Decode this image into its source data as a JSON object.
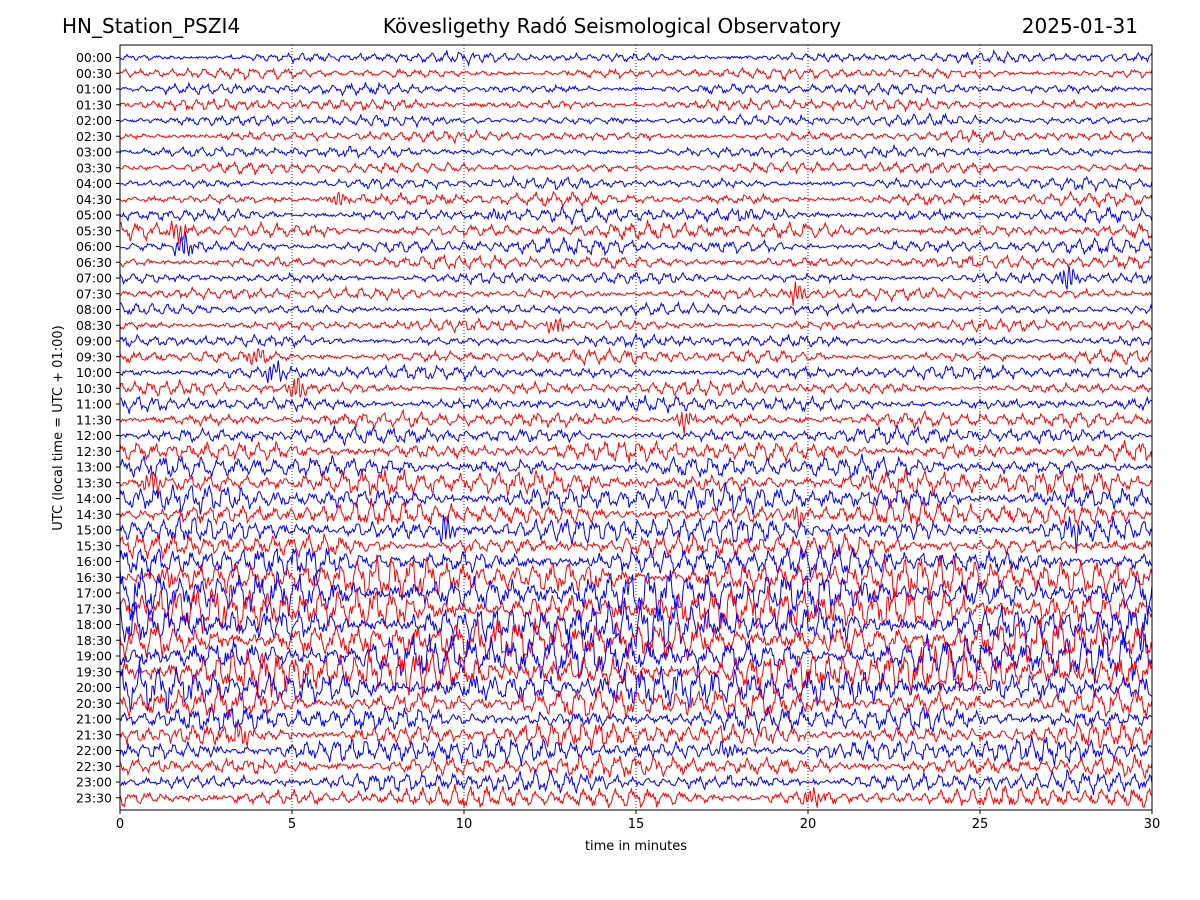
{
  "header": {
    "station": "HN_Station_PSZI4",
    "observatory": "Kövesligethy Radó Seismological Observatory",
    "date": "2025-01-31"
  },
  "chart_data": {
    "type": "line",
    "title": "Kövesligethy Radó Seismological Observatory",
    "xlabel": "time in minutes",
    "ylabel": "UTC (local time = UTC + 01:00)",
    "xlim": [
      0,
      30
    ],
    "x_ticks": [
      "0",
      "5",
      "10",
      "15",
      "20",
      "25",
      "30"
    ],
    "grid": "vertical dotted",
    "row_labels": [
      "00:00",
      "00:30",
      "01:00",
      "01:30",
      "02:00",
      "02:30",
      "03:00",
      "03:30",
      "04:00",
      "04:30",
      "05:00",
      "05:30",
      "06:00",
      "06:30",
      "07:00",
      "07:30",
      "08:00",
      "08:30",
      "09:00",
      "09:30",
      "10:00",
      "10:30",
      "11:00",
      "11:30",
      "12:00",
      "12:30",
      "13:00",
      "13:30",
      "14:00",
      "14:30",
      "15:00",
      "15:30",
      "16:00",
      "16:30",
      "17:00",
      "17:30",
      "18:00",
      "18:30",
      "19:00",
      "19:30",
      "20:00",
      "20:30",
      "21:00",
      "21:30",
      "22:00",
      "22:30",
      "23:00",
      "23:30"
    ],
    "colors": [
      "#0000ff",
      "#ff0000"
    ],
    "relative_amplitude": [
      0.15,
      0.16,
      0.15,
      0.17,
      0.16,
      0.15,
      0.15,
      0.16,
      0.17,
      0.2,
      0.25,
      0.3,
      0.27,
      0.22,
      0.18,
      0.17,
      0.16,
      0.17,
      0.18,
      0.24,
      0.23,
      0.22,
      0.25,
      0.26,
      0.3,
      0.4,
      0.42,
      0.5,
      0.55,
      0.5,
      0.55,
      0.45,
      0.6,
      0.85,
      1.0,
      1.0,
      1.0,
      1.0,
      1.0,
      1.0,
      0.9,
      0.65,
      0.5,
      0.5,
      0.5,
      0.42,
      0.4,
      0.4
    ],
    "events": [
      {
        "row": 9,
        "minute": 6.2,
        "strength": 0.6
      },
      {
        "row": 10,
        "minute": 10.8,
        "strength": 0.5
      },
      {
        "row": 10,
        "minute": 18.0,
        "strength": 0.5
      },
      {
        "row": 11,
        "minute": 1.5,
        "strength": 1.0
      },
      {
        "row": 12,
        "minute": 1.7,
        "strength": 1.0
      },
      {
        "row": 14,
        "minute": 27.4,
        "strength": 0.9
      },
      {
        "row": 15,
        "minute": 19.5,
        "strength": 0.8
      },
      {
        "row": 17,
        "minute": 12.5,
        "strength": 0.6
      },
      {
        "row": 19,
        "minute": 3.8,
        "strength": 0.8
      },
      {
        "row": 20,
        "minute": 4.3,
        "strength": 1.0
      },
      {
        "row": 21,
        "minute": 5.0,
        "strength": 0.9
      },
      {
        "row": 23,
        "minute": 16.3,
        "strength": 0.9
      },
      {
        "row": 27,
        "minute": 0.8,
        "strength": 0.9
      },
      {
        "row": 29,
        "minute": 19.6,
        "strength": 0.8
      },
      {
        "row": 30,
        "minute": 9.3,
        "strength": 1.0
      },
      {
        "row": 30,
        "minute": 27.6,
        "strength": 1.0
      },
      {
        "row": 33,
        "minute": 1.2,
        "strength": 0.9
      },
      {
        "row": 43,
        "minute": 3.4,
        "strength": 0.9
      },
      {
        "row": 44,
        "minute": 17.5,
        "strength": 0.6
      },
      {
        "row": 47,
        "minute": 20.0,
        "strength": 0.7
      }
    ]
  }
}
